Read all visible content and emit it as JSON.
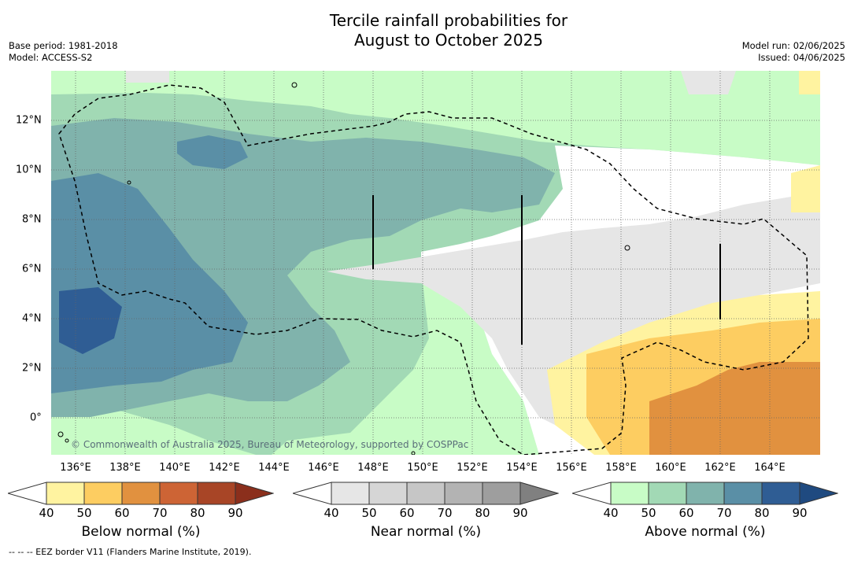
{
  "title_line1": "Tercile rainfall probabilities for",
  "title_line2": "August to October 2025",
  "base_period": "Base period: 1981-2018",
  "model": "Model: ACCESS-S2",
  "model_run": "Model run: 02/06/2025",
  "issued": "Issued: 04/06/2025",
  "copyright": "© Commonwealth of Australia 2025, Bureau of Meteorology, supported by COSPPac",
  "x_ticks": [
    "136°E",
    "138°E",
    "140°E",
    "142°E",
    "144°E",
    "146°E",
    "148°E",
    "150°E",
    "152°E",
    "154°E",
    "156°E",
    "158°E",
    "160°E",
    "162°E",
    "164°E"
  ],
  "y_ticks": [
    "12°N",
    "10°N",
    "8°N",
    "6°N",
    "4°N",
    "2°N",
    "0°"
  ],
  "colorbars": [
    {
      "label": "Below normal (%)",
      "ticks": [
        "40",
        "50",
        "60",
        "70",
        "80",
        "90"
      ],
      "colors": [
        "#fff3a0",
        "#fdcd61",
        "#e1913f",
        "#cd6435",
        "#a84526"
      ],
      "arrow_color": "#8b2f1c"
    },
    {
      "label": "Near normal (%)",
      "ticks": [
        "40",
        "50",
        "60",
        "70",
        "80",
        "90"
      ],
      "colors": [
        "#e6e6e6",
        "#d6d6d6",
        "#c6c6c6",
        "#b3b3b3",
        "#9e9e9e"
      ],
      "arrow_color": "#808080"
    },
    {
      "label": "Above normal (%)",
      "ticks": [
        "40",
        "50",
        "60",
        "70",
        "80",
        "90"
      ],
      "colors": [
        "#c8fcc6",
        "#a2d9b5",
        "#80b3ac",
        "#5a8fa6",
        "#2f5d94"
      ],
      "arrow_color": "#1f4a80"
    }
  ],
  "footnote": "--  --  -- EEZ border V11 (Flanders Marine Institute, 2019)."
}
